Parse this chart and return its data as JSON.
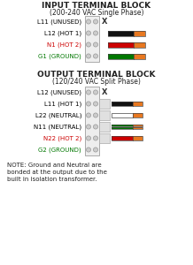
{
  "title1": "INPUT TERMINAL BLOCK",
  "subtitle1": "(200-240 VAC Single Phase)",
  "title2": "OUTPUT TERMINAL BLOCK",
  "subtitle2": "(120/240 VAC Split Phase)",
  "note": "NOTE: Ground and Neutral are\nbonded at the output due to the\nbuilt in isolation transformer.",
  "input_labels": [
    {
      "text": "L11 (UNUSED)",
      "color": "#000000"
    },
    {
      "text": "L12 (HOT 1)",
      "color": "#000000"
    },
    {
      "text": "N1 (HOT 2)",
      "color": "#cc0000"
    },
    {
      "text": "G1 (GROUND)",
      "color": "#007700"
    }
  ],
  "output_labels": [
    {
      "text": "L12 (UNUSED)",
      "color": "#000000"
    },
    {
      "text": "L11 (HOT 1)",
      "color": "#000000"
    },
    {
      "text": "L22 (NEUTRAL)",
      "color": "#000000"
    },
    {
      "text": "N11 (NEUTRAL)",
      "color": "#000000"
    },
    {
      "text": "N22 (HOT 2)",
      "color": "#cc0000"
    },
    {
      "text": "G2 (GROUND)",
      "color": "#007700"
    }
  ],
  "input_wires": [
    null,
    [
      "#e87820",
      "#111111"
    ],
    [
      "#e87820",
      "#cc0000"
    ],
    [
      "#e87820",
      "#007700"
    ]
  ],
  "output_wires": [
    null,
    [
      "#e87820",
      "#111111"
    ],
    [
      "#e87820",
      "#ffffff"
    ],
    [
      "#e87820",
      "#007700"
    ],
    [
      "#e87820",
      "#cc0000"
    ],
    null
  ],
  "bg_color": "#ffffff",
  "title_fontsize": 6.5,
  "subtitle_fontsize": 5.5,
  "label_fontsize": 5.0,
  "note_fontsize": 5.0
}
